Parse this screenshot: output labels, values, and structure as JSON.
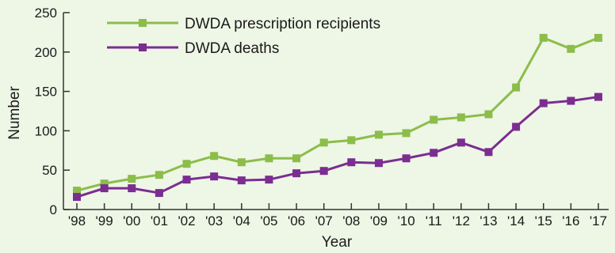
{
  "chart_data": {
    "type": "line",
    "categories": [
      "'98",
      "'99",
      "'00",
      "'01",
      "'02",
      "'03",
      "'04",
      "'05",
      "'06",
      "'07",
      "'08",
      "'09",
      "'10",
      "'11",
      "'12",
      "'13",
      "'14",
      "'15",
      "'16",
      "'17"
    ],
    "series": [
      {
        "name": "DWDA prescription recipients",
        "color": "#8cbd4a",
        "values": [
          24,
          33,
          39,
          44,
          58,
          68,
          60,
          65,
          65,
          85,
          88,
          95,
          97,
          114,
          117,
          121,
          155,
          218,
          204,
          218
        ]
      },
      {
        "name": "DWDA deaths",
        "color": "#7b2d91",
        "values": [
          16,
          27,
          27,
          21,
          38,
          42,
          37,
          38,
          46,
          49,
          60,
          59,
          65,
          72,
          85,
          73,
          105,
          135,
          138,
          143
        ]
      }
    ],
    "ylabel": "Number",
    "xlabel": "Year",
    "ylim": [
      0,
      250
    ],
    "yticks": [
      0,
      50,
      100,
      150,
      200,
      250
    ],
    "grid": false,
    "legend_position": "top-left"
  }
}
